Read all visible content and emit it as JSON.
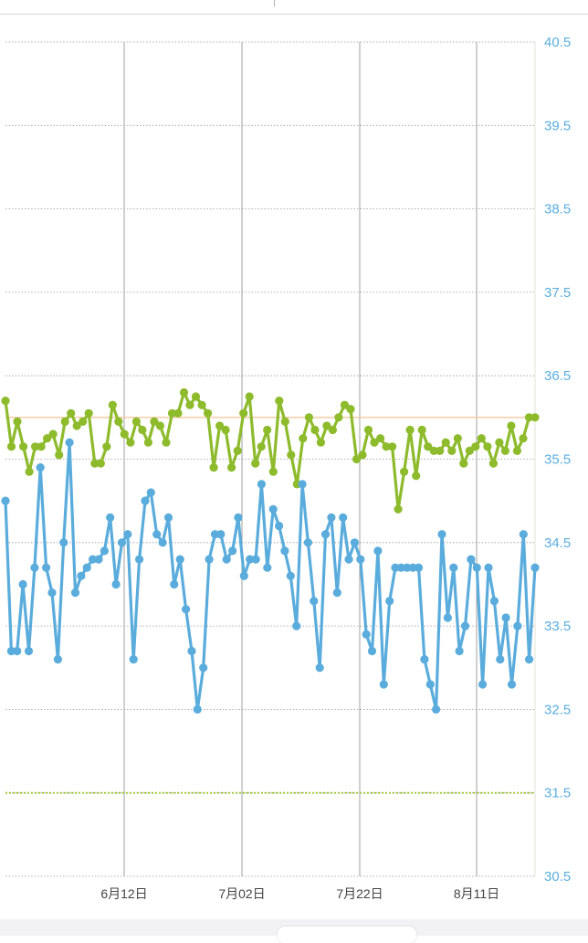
{
  "chart_data": {
    "type": "line",
    "title": "",
    "xlabel": "",
    "ylabel": "",
    "ylim": [
      30.5,
      40.5
    ],
    "y_ticks": [
      "40.5",
      "39.5",
      "38.5",
      "37.5",
      "36.5",
      "35.5",
      "34.5",
      "33.5",
      "32.5",
      "31.5",
      "30.5"
    ],
    "x_ticks": [
      "6月12日",
      "7月02日",
      "7月22日",
      "8月11日"
    ],
    "x_start": "5月21日",
    "x_end": "8月19日",
    "reference_line": 36.0,
    "dashed_line": 31.5,
    "grid": true,
    "colors": {
      "series_1": "#8dbb2c",
      "series_2": "#5aacdc",
      "reference": "#f3c9a0",
      "dashed": "#a6cb3f",
      "axis_text": "#5aaee0",
      "x_text": "#444444",
      "grid": "#9a9a9a"
    },
    "series": [
      {
        "values": [
          36.2,
          35.65,
          35.95,
          35.65,
          35.35,
          35.65,
          35.65,
          35.75,
          35.8,
          35.55,
          35.95,
          36.05,
          35.9,
          35.95,
          36.05,
          35.45,
          35.45,
          35.65,
          36.15,
          35.95,
          35.8,
          35.7,
          35.95,
          35.85,
          35.7,
          35.95,
          35.9,
          35.7,
          36.05,
          36.05,
          36.3,
          36.15,
          36.25,
          36.15,
          36.05,
          35.4,
          35.9,
          35.85,
          35.4,
          35.6,
          36.05,
          36.25,
          35.45,
          35.65,
          35.85,
          35.35,
          36.2,
          35.95,
          35.55,
          35.2,
          35.75,
          36.0,
          35.85,
          35.7,
          35.9,
          35.85,
          36.0,
          36.15,
          36.1,
          35.5,
          35.55,
          35.85,
          35.7,
          35.75,
          35.65,
          35.65,
          34.9,
          35.35,
          35.85,
          35.3,
          35.85,
          35.65,
          35.6,
          35.6,
          35.7,
          35.6,
          35.75,
          35.45,
          35.6,
          35.65,
          35.75,
          35.65,
          35.45,
          35.7,
          35.6,
          35.9,
          35.6,
          35.75,
          36.0,
          36.0
        ]
      },
      {
        "values": [
          35.0,
          33.2,
          33.2,
          34.0,
          33.2,
          34.2,
          35.4,
          34.2,
          33.9,
          33.1,
          34.5,
          35.7,
          33.9,
          34.1,
          34.2,
          34.3,
          34.3,
          34.4,
          34.8,
          34.0,
          34.5,
          34.6,
          33.1,
          34.3,
          35.0,
          35.1,
          34.6,
          34.5,
          34.8,
          34.0,
          34.3,
          33.7,
          33.2,
          32.5,
          33.0,
          34.3,
          34.6,
          34.6,
          34.3,
          34.4,
          34.8,
          34.1,
          34.3,
          34.3,
          35.2,
          34.2,
          34.9,
          34.7,
          34.4,
          34.1,
          33.5,
          35.2,
          34.5,
          33.8,
          33.0,
          34.6,
          34.8,
          33.9,
          34.8,
          34.3,
          34.5,
          34.3,
          33.4,
          33.2,
          34.4,
          32.8,
          33.8,
          34.2,
          34.2,
          34.2,
          34.2,
          34.2,
          33.1,
          32.8,
          32.5,
          34.6,
          33.6,
          34.2,
          33.2,
          33.5,
          34.3,
          34.2,
          32.8,
          34.2,
          33.8,
          33.1,
          33.6,
          32.8,
          33.5,
          34.6,
          33.1,
          34.2
        ]
      }
    ]
  },
  "bottom_bar": {
    "selected_index": 2
  }
}
